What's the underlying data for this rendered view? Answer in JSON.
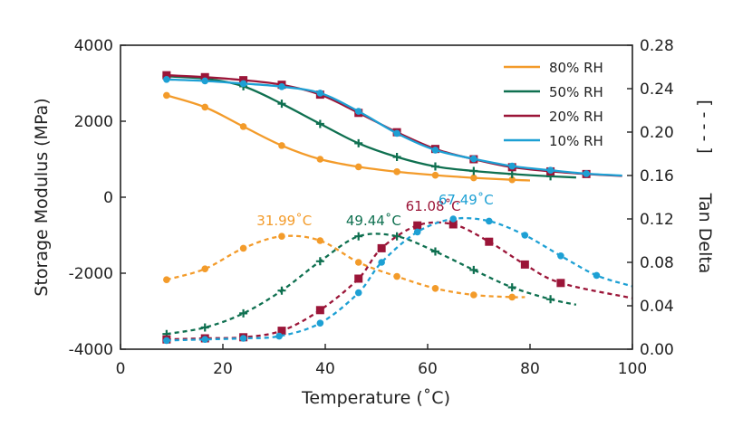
{
  "chart_data": {
    "type": "line",
    "xlabel": "Temperature (˚C)",
    "ylabel_left": "Storage Modulus (MPa)",
    "ylabel_right": "Tan Delta",
    "right_axis_bracket": "[ - - - ]",
    "xlim": [
      0,
      100
    ],
    "ylim_left": [
      -4000,
      4000
    ],
    "ylim_right": [
      0.0,
      0.28
    ],
    "x_ticks": [
      "0",
      "20",
      "40",
      "60",
      "80",
      "100"
    ],
    "y_left_ticks": [
      "-4000",
      "-2000",
      "0",
      "2000",
      "4000"
    ],
    "y_right_ticks": [
      "0.00",
      "0.04",
      "0.08",
      "0.12",
      "0.16",
      "0.20",
      "0.24",
      "0.28"
    ],
    "grid": false,
    "legend_position": "top-right",
    "series": [
      {
        "name": "80% RH",
        "color": "#f39b2a",
        "marker": "circle",
        "storage_modulus": {
          "x": [
            9,
            16.5,
            24,
            31.5,
            39,
            46.5,
            54,
            61.5,
            69,
            76.5,
            80
          ],
          "y": [
            2680,
            2370,
            1860,
            1360,
            1000,
            800,
            670,
            580,
            510,
            460,
            440
          ]
        },
        "tan_delta": {
          "x": [
            9,
            16.5,
            24,
            31.5,
            39,
            46.5,
            54,
            61.5,
            69,
            76.5,
            79
          ],
          "y": [
            0.064,
            0.074,
            0.093,
            0.104,
            0.1,
            0.08,
            0.067,
            0.056,
            0.05,
            0.048,
            0.048
          ]
        }
      },
      {
        "name": "50% RH",
        "color": "#0f7050",
        "marker": "plus",
        "storage_modulus": {
          "x": [
            9,
            16.5,
            24,
            31.5,
            39,
            46.5,
            54,
            61.5,
            69,
            76.5,
            84,
            89
          ],
          "y": [
            3180,
            3120,
            2920,
            2460,
            1930,
            1420,
            1060,
            810,
            690,
            610,
            550,
            520
          ]
        },
        "tan_delta": {
          "x": [
            9,
            16.5,
            24,
            31.5,
            39,
            46.5,
            54,
            61.5,
            69,
            76.5,
            84,
            89
          ],
          "y": [
            0.014,
            0.02,
            0.033,
            0.054,
            0.081,
            0.104,
            0.104,
            0.09,
            0.073,
            0.057,
            0.046,
            0.041
          ]
        }
      },
      {
        "name": "20% RH",
        "color": "#9b1538",
        "marker": "square",
        "storage_modulus": {
          "x": [
            9,
            16.5,
            24,
            31.5,
            39,
            46.5,
            54,
            61.5,
            69,
            76.5,
            84,
            91,
            98
          ],
          "y": [
            3210,
            3160,
            3080,
            2960,
            2700,
            2220,
            1710,
            1270,
            1000,
            790,
            680,
            610,
            560
          ]
        },
        "tan_delta": {
          "x": [
            9,
            16.5,
            24,
            31.5,
            39,
            46.5,
            51,
            58,
            65,
            72,
            79,
            86,
            100
          ],
          "y": [
            0.009,
            0.01,
            0.011,
            0.017,
            0.036,
            0.065,
            0.093,
            0.114,
            0.115,
            0.099,
            0.078,
            0.061,
            0.047
          ]
        }
      },
      {
        "name": "10% RH",
        "color": "#1da0d4",
        "marker": "circle",
        "storage_modulus": {
          "x": [
            9,
            16.5,
            24,
            31.5,
            39,
            46.5,
            54,
            61.5,
            69,
            76.5,
            84,
            91,
            98
          ],
          "y": [
            3100,
            3060,
            2990,
            2910,
            2740,
            2260,
            1680,
            1240,
            1010,
            820,
            710,
            620,
            570
          ]
        },
        "tan_delta": {
          "x": [
            9,
            16.5,
            24,
            31,
            39,
            46.5,
            51,
            58,
            65,
            72,
            79,
            86,
            93,
            100
          ],
          "y": [
            0.008,
            0.009,
            0.01,
            0.012,
            0.024,
            0.052,
            0.08,
            0.108,
            0.12,
            0.118,
            0.105,
            0.086,
            0.068,
            0.058
          ]
        }
      }
    ],
    "annotations": [
      {
        "text": "31.99˚C",
        "x": 31.99,
        "y_tan": 0.111,
        "color": "#f39b2a"
      },
      {
        "text": "49.44˚C",
        "x": 49.44,
        "y_tan": 0.111,
        "color": "#0f7050"
      },
      {
        "text": "61.08˚C",
        "x": 61.08,
        "y_tan": 0.124,
        "color": "#9b1538"
      },
      {
        "text": "67.49˚C",
        "x": 67.49,
        "y_tan": 0.13,
        "color": "#1da0d4"
      }
    ]
  }
}
